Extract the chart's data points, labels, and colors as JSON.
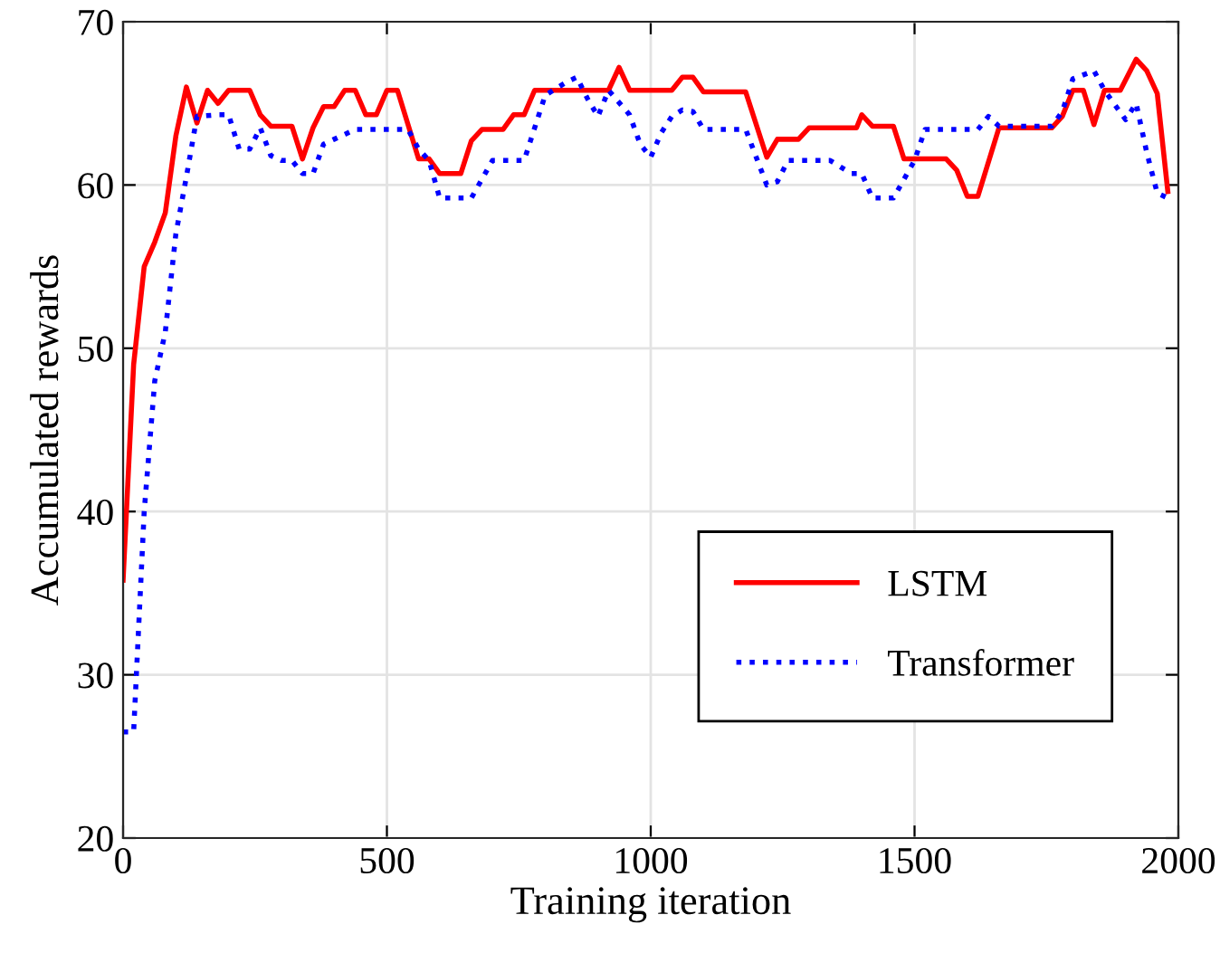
{
  "chart_data": {
    "type": "line",
    "xlabel": "Training iteration",
    "ylabel": "Accumulated rewards",
    "xlim": [
      0,
      2000
    ],
    "xticks": [
      0,
      500,
      1000,
      1500,
      2000
    ],
    "ylim": [
      20,
      70
    ],
    "yticks": [
      20,
      30,
      40,
      50,
      60,
      70
    ],
    "grid": true,
    "legend": "bottom right",
    "marker": "none",
    "series": [
      {
        "name": "LSTM",
        "color": "#ff0000",
        "line_style": "solid",
        "x": [
          0,
          20,
          40,
          60,
          80,
          100,
          120,
          140,
          160,
          180,
          200,
          240,
          260,
          280,
          320,
          340,
          360,
          380,
          400,
          420,
          440,
          460,
          480,
          500,
          520,
          560,
          580,
          600,
          640,
          660,
          680,
          720,
          740,
          760,
          780,
          920,
          940,
          960,
          1040,
          1060,
          1080,
          1100,
          1180,
          1220,
          1240,
          1280,
          1300,
          1390,
          1400,
          1420,
          1460,
          1480,
          1560,
          1580,
          1600,
          1620,
          1660,
          1760,
          1780,
          1800,
          1820,
          1840,
          1860,
          1890,
          1920,
          1940,
          1960,
          1980
        ],
        "values": [
          35.8,
          49,
          55,
          56.5,
          58.3,
          63,
          66,
          63.8,
          65.8,
          65,
          65.8,
          65.8,
          64.3,
          63.6,
          63.6,
          61.6,
          63.5,
          64.8,
          64.8,
          65.8,
          65.8,
          64.3,
          64.3,
          65.8,
          65.8,
          61.6,
          61.6,
          60.7,
          60.7,
          62.7,
          63.4,
          63.4,
          64.3,
          64.3,
          65.8,
          65.8,
          67.2,
          65.8,
          65.8,
          66.6,
          66.6,
          65.7,
          65.7,
          61.7,
          62.8,
          62.8,
          63.5,
          63.5,
          64.3,
          63.6,
          63.6,
          61.6,
          61.6,
          60.9,
          59.3,
          59.3,
          63.5,
          63.5,
          64.2,
          65.8,
          65.8,
          63.7,
          65.8,
          65.8,
          67.7,
          67,
          65.6,
          59.6
        ]
      },
      {
        "name": "Transformer",
        "color": "#0000ff",
        "line_style": "dotted",
        "x": [
          0,
          20,
          40,
          60,
          80,
          100,
          120,
          140,
          180,
          200,
          220,
          240,
          260,
          280,
          300,
          320,
          340,
          360,
          380,
          400,
          440,
          540,
          560,
          580,
          600,
          660,
          700,
          760,
          800,
          840,
          860,
          880,
          900,
          920,
          960,
          980,
          1000,
          1020,
          1040,
          1060,
          1080,
          1100,
          1180,
          1220,
          1240,
          1260,
          1340,
          1380,
          1400,
          1420,
          1460,
          1500,
          1520,
          1620,
          1640,
          1660,
          1760,
          1780,
          1800,
          1840,
          1860,
          1900,
          1920,
          1940,
          1960,
          1980
        ],
        "values": [
          26.5,
          26.5,
          40,
          48,
          51,
          57,
          60.5,
          64.2,
          64.3,
          64.3,
          62.2,
          62.2,
          63.5,
          61.8,
          61.5,
          61.5,
          60.7,
          60.7,
          62.5,
          62.8,
          63.4,
          63.4,
          62.2,
          61.5,
          59.2,
          59.2,
          61.5,
          61.5,
          65.5,
          66.3,
          66.6,
          65.3,
          64.2,
          65.8,
          64.3,
          62.5,
          61.7,
          63.2,
          64.2,
          64.6,
          64.5,
          63.4,
          63.4,
          60,
          60.2,
          61.5,
          61.5,
          60.7,
          60.7,
          59.2,
          59.2,
          61.5,
          63.4,
          63.4,
          64.2,
          63.6,
          63.6,
          64.5,
          66.5,
          67,
          65.8,
          64,
          65,
          62,
          59.5,
          59.2
        ]
      }
    ]
  }
}
